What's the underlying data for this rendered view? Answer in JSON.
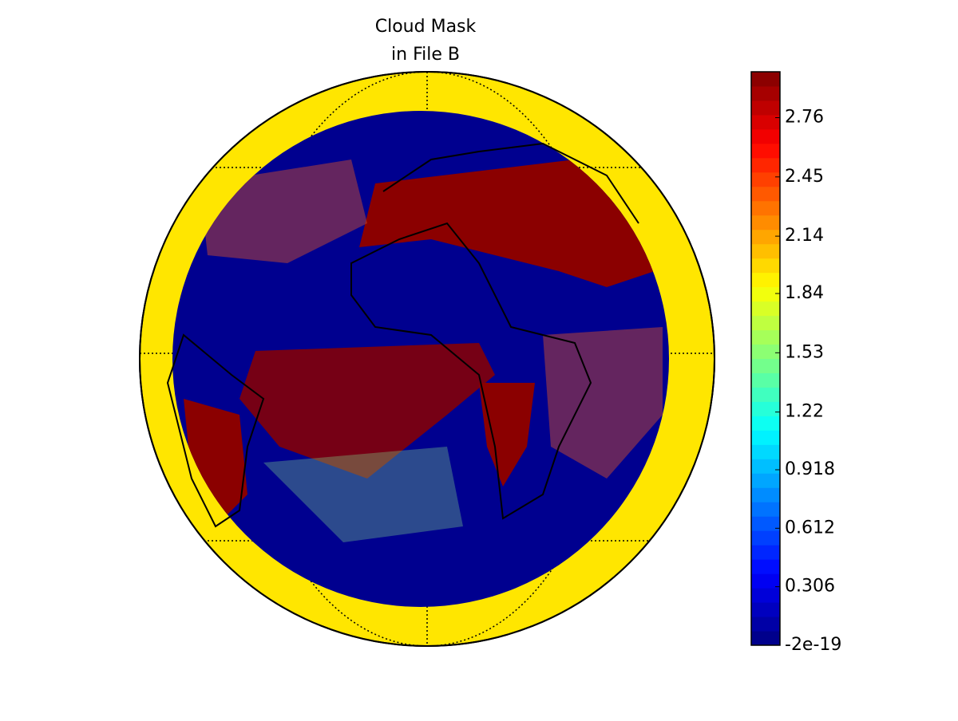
{
  "chart_data": {
    "type": "map",
    "title_lines": [
      "Cloud Mask",
      "in File B"
    ],
    "colorbar": {
      "clim": [
        -2e-19,
        3
      ],
      "ticks": [
        -2e-19,
        0.306,
        0.612,
        0.918,
        1.22,
        1.53,
        1.84,
        2.14,
        2.45,
        2.76
      ]
    }
  }
}
